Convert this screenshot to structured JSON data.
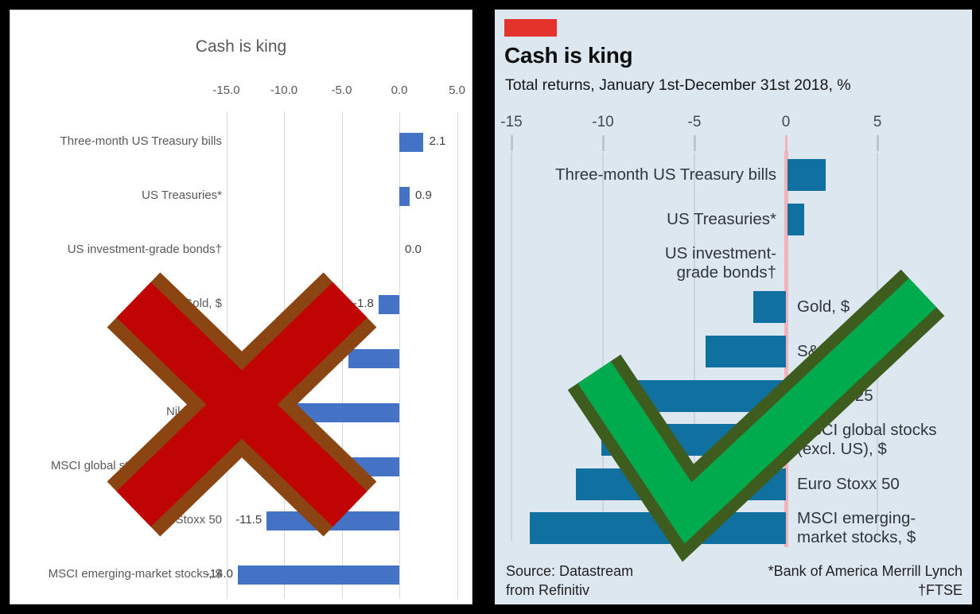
{
  "chart_data": [
    {
      "panel": "left",
      "style": "default-spreadsheet-chart",
      "type": "bar",
      "orientation": "horizontal",
      "title": "Cash is king",
      "categories": [
        "Three-month US Treasury bills",
        "US Treasuries*",
        "US investment-grade bonds†",
        "Gold, $",
        "S&P 500",
        "Nikkei 225",
        "MSCI global stocks (excl. US), $",
        "Euro Stoxx 50",
        "MSCI emerging-market stocks, $"
      ],
      "values": [
        2.1,
        0.9,
        0.0,
        -1.8,
        -4.4,
        -10.3,
        -10.1,
        -11.5,
        -14.0
      ],
      "value_labels": [
        "2.1",
        "0.9",
        "0.0",
        "-1.8",
        "-4.4",
        "-10.3",
        "-10.1",
        "-11.5",
        "-14.0"
      ],
      "ticks": [
        -15,
        -10,
        -5,
        0,
        5
      ],
      "tick_labels": [
        "-15.0",
        "-10.0",
        "-5.0",
        "0.0",
        "5.0"
      ],
      "xlim": [
        -15,
        5
      ],
      "grid": true,
      "legend": false,
      "bar_color": "#4472c4",
      "gridline_color": "#d9d9d9",
      "text_color": "#595959",
      "background": "#ffffff",
      "overlay_verdict": "rejected-x-mark"
    },
    {
      "panel": "right",
      "style": "economist-redesign",
      "type": "bar",
      "orientation": "horizontal",
      "title": "Cash is king",
      "subtitle": "Total returns, January 1st-December 31st 2018, %",
      "categories": [
        "Three-month US Treasury bills",
        "US Treasuries*",
        "US investment-\ngrade bonds†",
        "Gold, $",
        "S&P 500",
        "Nikkei 225",
        "MSCI global stocks\n(excl. US), $",
        "Euro Stoxx 50",
        "MSCI emerging-\nmarket stocks, $"
      ],
      "values": [
        2.1,
        0.9,
        0.0,
        -1.8,
        -4.4,
        -10.3,
        -10.1,
        -11.5,
        -14.0
      ],
      "ticks": [
        -15,
        -10,
        -5,
        0,
        5
      ],
      "tick_labels": [
        "-15",
        "-10",
        "-5",
        "0",
        "5"
      ],
      "xlim": [
        -15,
        5
      ],
      "grid": true,
      "legend": false,
      "label_placement": "positive bars labelled left of zero axis, negative bars labelled right of zero axis",
      "source": "Source: Datastream\nfrom Refinitiv",
      "footnotes": [
        "*Bank of America Merrill Lynch",
        "†FTSE"
      ],
      "footnotes_text": "*Bank of America Merrill Lynch\n†FTSE",
      "bar_color": "#10709f",
      "zero_line_color": "#f2b3ba",
      "gridline_color": "#c9d4dc",
      "background": "#dce7f0",
      "brand_tag_color": "#e3332a",
      "overlay_verdict": "approved-check-mark"
    }
  ],
  "overlays": {
    "x_mark": {
      "meaning": "rejected example",
      "fill": "#c00404",
      "border": "#8a4513"
    },
    "check_mark": {
      "meaning": "approved example",
      "fill": "#00ab4e",
      "border": "#3f5c1f"
    }
  },
  "colors": {
    "page_background": "#000000",
    "left_panel_background": "#ffffff",
    "right_panel_background": "#dce7f0",
    "left_bar": "#4472c4",
    "right_bar": "#10709f",
    "zero_line_pink": "#f2b3ba",
    "brand_tag_red": "#e3332a"
  }
}
